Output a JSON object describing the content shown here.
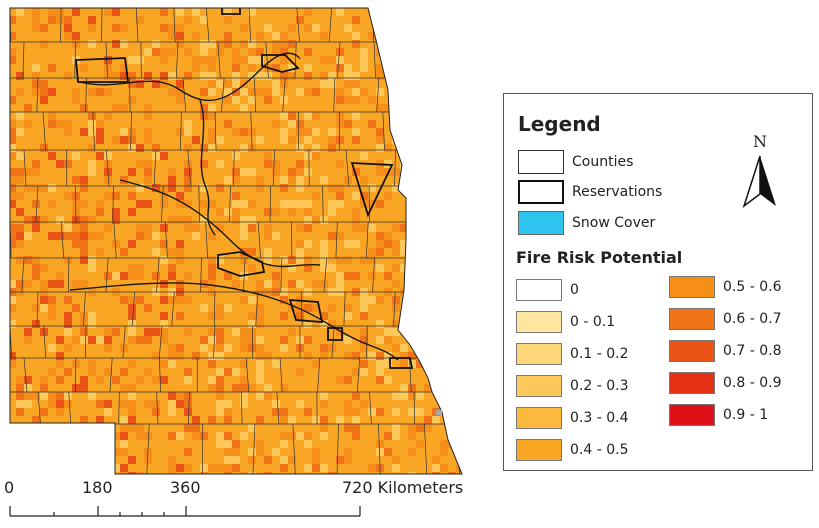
{
  "legend": {
    "title": "Legend",
    "items": [
      {
        "label": "Counties",
        "style": "thin-outline"
      },
      {
        "label": "Reservations",
        "style": "thick-outline"
      },
      {
        "label": "Snow Cover",
        "color": "#2ec4f0"
      }
    ],
    "fire_risk_title": "Fire Risk Potential",
    "fire_risk_classes": [
      {
        "label": "0",
        "color": "#ffffff"
      },
      {
        "label": "0 - 0.1",
        "color": "#fde6a2"
      },
      {
        "label": "0.1 - 0.2",
        "color": "#fdd67a"
      },
      {
        "label": "0.2 - 0.3",
        "color": "#fcc85a"
      },
      {
        "label": "0.3 - 0.4",
        "color": "#fbb93e"
      },
      {
        "label": "0.4 - 0.5",
        "color": "#f9a624"
      },
      {
        "label": "0.5 - 0.6",
        "color": "#f68e1a"
      },
      {
        "label": "0.6 - 0.7",
        "color": "#f07318"
      },
      {
        "label": "0.7 - 0.8",
        "color": "#ea5316"
      },
      {
        "label": "0.8 - 0.9",
        "color": "#e53217"
      },
      {
        "label": "0.9 - 1",
        "color": "#e01018"
      }
    ],
    "north_label": "N"
  },
  "scale_bar": {
    "labels": [
      "0",
      "180",
      "360",
      "720 Kilometers"
    ]
  },
  "colors": {
    "base_map": "#f9a624",
    "county_lines": "#333333",
    "reservation_lines": "#111111"
  }
}
